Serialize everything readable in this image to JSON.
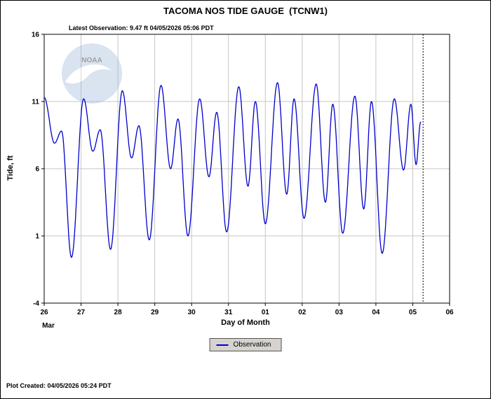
{
  "header": {
    "title": "TACOMA NOS TIDE GAUGE  (TCNW1)",
    "latest_observation": "Latest Observation: 9.47 ft 04/05/2026 05:06 PDT"
  },
  "axes": {
    "y_label": "Tide, ft",
    "x_label": "Day of Month",
    "month_label": "Mar"
  },
  "legend": {
    "observation_label": "Observation"
  },
  "footer": {
    "plot_created": "Plot Created: 04/05/2026 05:24 PDT"
  },
  "logo": {
    "text": "NOAA"
  },
  "colors": {
    "line": "#0000cc",
    "grid": "#c6c6c6",
    "axis": "#000000",
    "legend_bg": "#d6d3ce",
    "logo_blue": "#9fb6d9"
  },
  "chart_data": {
    "type": "line",
    "title": "TACOMA NOS TIDE GAUGE  (TCNW1)",
    "xlabel": "Day of Month",
    "ylabel": "Tide, ft",
    "units": "ft",
    "xlim": [
      26,
      37
    ],
    "ylim": [
      -4,
      16
    ],
    "grid": true,
    "legend_position": "bottom",
    "x_ticks": [
      {
        "t": 26,
        "label": "26"
      },
      {
        "t": 27,
        "label": "27"
      },
      {
        "t": 28,
        "label": "28"
      },
      {
        "t": 29,
        "label": "29"
      },
      {
        "t": 30,
        "label": "30"
      },
      {
        "t": 31,
        "label": "31"
      },
      {
        "t": 32,
        "label": "01"
      },
      {
        "t": 33,
        "label": "02"
      },
      {
        "t": 34,
        "label": "03"
      },
      {
        "t": 35,
        "label": "04"
      },
      {
        "t": 36,
        "label": "05"
      },
      {
        "t": 37,
        "label": "06"
      }
    ],
    "y_ticks": [
      {
        "v": -4,
        "label": "-4"
      },
      {
        "v": 1,
        "label": "1"
      },
      {
        "v": 6,
        "label": "6"
      },
      {
        "v": 11,
        "label": "11"
      },
      {
        "v": 16,
        "label": "16"
      }
    ],
    "latest_observation": {
      "value_ft": 9.47,
      "time": "04/05/2026 05:06 PDT"
    },
    "latest_marker_t": 36.28,
    "series": [
      {
        "name": "Observation",
        "note": "tide extremes as [day-of-month (Mar 26 = 26, Apr 1 = 32), height ft]; curve is smooth tidal oscillation between extremes",
        "extremes": [
          [
            26.0,
            11.3
          ],
          [
            26.28,
            7.9
          ],
          [
            26.47,
            8.8
          ],
          [
            26.74,
            -0.6
          ],
          [
            27.07,
            11.2
          ],
          [
            27.32,
            7.3
          ],
          [
            27.52,
            8.9
          ],
          [
            27.8,
            0.0
          ],
          [
            28.12,
            11.8
          ],
          [
            28.37,
            6.8
          ],
          [
            28.57,
            9.2
          ],
          [
            28.85,
            0.7
          ],
          [
            29.17,
            12.2
          ],
          [
            29.43,
            6.0
          ],
          [
            29.63,
            9.7
          ],
          [
            29.9,
            1.0
          ],
          [
            30.22,
            11.2
          ],
          [
            30.47,
            5.4
          ],
          [
            30.68,
            10.2
          ],
          [
            30.95,
            1.3
          ],
          [
            31.28,
            12.1
          ],
          [
            31.53,
            4.7
          ],
          [
            31.73,
            11.0
          ],
          [
            32.0,
            1.9
          ],
          [
            32.33,
            12.4
          ],
          [
            32.58,
            4.1
          ],
          [
            32.78,
            11.2
          ],
          [
            33.05,
            2.3
          ],
          [
            33.38,
            12.3
          ],
          [
            33.63,
            3.5
          ],
          [
            33.83,
            10.8
          ],
          [
            34.1,
            1.2
          ],
          [
            34.43,
            11.4
          ],
          [
            34.67,
            3.0
          ],
          [
            34.88,
            11.0
          ],
          [
            35.17,
            -0.3
          ],
          [
            35.5,
            11.2
          ],
          [
            35.75,
            5.9
          ],
          [
            35.95,
            10.8
          ],
          [
            36.09,
            6.3
          ],
          [
            36.213,
            9.47
          ]
        ]
      }
    ]
  }
}
